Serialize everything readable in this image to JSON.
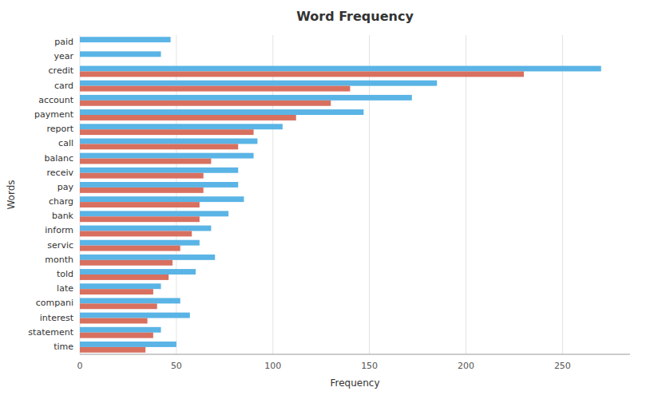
{
  "chart_data": {
    "type": "bar",
    "orientation": "horizontal",
    "title": "Word Frequency",
    "xlabel": "Frequency",
    "ylabel": "Words",
    "categories": [
      "paid",
      "year",
      "credit",
      "card",
      "account",
      "payment",
      "report",
      "call",
      "balanc",
      "receiv",
      "pay",
      "charg",
      "bank",
      "inform",
      "servic",
      "month",
      "told",
      "late",
      "compani",
      "interest",
      "statement",
      "time"
    ],
    "series": [
      {
        "color": "#5ab4e5",
        "values": [
          47,
          42,
          270,
          185,
          172,
          147,
          105,
          92,
          90,
          82,
          82,
          85,
          77,
          68,
          62,
          70,
          60,
          42,
          52,
          57,
          42,
          50
        ]
      },
      {
        "color": "#d87060",
        "values": [
          0,
          0,
          230,
          140,
          130,
          112,
          90,
          82,
          68,
          64,
          64,
          62,
          62,
          58,
          52,
          48,
          46,
          38,
          40,
          35,
          38,
          34
        ]
      }
    ],
    "xlim": [
      0,
      285
    ],
    "xticks": [
      0,
      50,
      100,
      150,
      200,
      250
    ],
    "grid": true
  }
}
